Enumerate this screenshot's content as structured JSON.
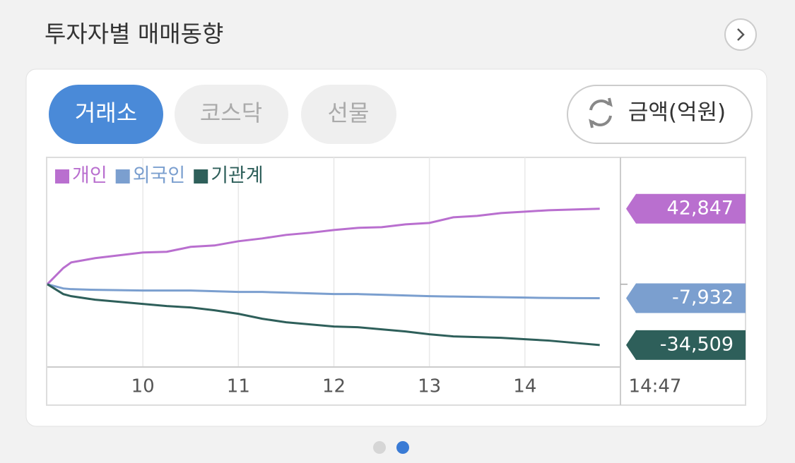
{
  "header": {
    "title": "투자자별 매매동향"
  },
  "tabs": [
    "거래소",
    "코스닥",
    "선물"
  ],
  "unit_button": "금액(억원)",
  "chart_data": {
    "type": "line",
    "x": [
      9,
      9.167,
      9.25,
      9.5,
      9.75,
      10,
      10.25,
      10.5,
      10.75,
      11,
      11.25,
      11.5,
      11.75,
      12,
      12.25,
      12.5,
      12.75,
      13,
      13.25,
      13.5,
      13.75,
      14,
      14.25,
      14.5,
      14.783
    ],
    "xlim": [
      9,
      15
    ],
    "xticks": [
      10,
      11,
      12,
      13,
      14
    ],
    "ylim": [
      -47000,
      72000
    ],
    "yticks": [
      0
    ],
    "time_label": "14:47",
    "series": [
      {
        "name": "개인",
        "color": "#b96fcf",
        "values": [
          0,
          9200,
          12400,
          14800,
          16400,
          18000,
          18400,
          21200,
          22000,
          24400,
          26000,
          28000,
          29200,
          30800,
          32000,
          32400,
          34000,
          34800,
          38000,
          38800,
          40400,
          41200,
          42000,
          42400,
          42847
        ],
        "value_labels": [
          null,
          null,
          null,
          null,
          null,
          null,
          null,
          null,
          null,
          null,
          null,
          null,
          null,
          null,
          null,
          null,
          null,
          null,
          null,
          null,
          null,
          null,
          null,
          null,
          "42,847"
        ]
      },
      {
        "name": "외국인",
        "color": "#7b9fcf",
        "values": [
          0,
          -2400,
          -2800,
          -3200,
          -3400,
          -3600,
          -3600,
          -3600,
          -4000,
          -4400,
          -4400,
          -4800,
          -5200,
          -5600,
          -5600,
          -6000,
          -6400,
          -6800,
          -7000,
          -7200,
          -7400,
          -7600,
          -7800,
          -7900,
          -7932
        ],
        "value_labels": [
          null,
          null,
          null,
          null,
          null,
          null,
          null,
          null,
          null,
          null,
          null,
          null,
          null,
          null,
          null,
          null,
          null,
          null,
          null,
          null,
          null,
          null,
          null,
          null,
          "-7,932"
        ]
      },
      {
        "name": "기관계",
        "color": "#2e5f5a",
        "values": [
          0,
          -5600,
          -6800,
          -8800,
          -10000,
          -11200,
          -12400,
          -13200,
          -14800,
          -16800,
          -19600,
          -21600,
          -22800,
          -24000,
          -24400,
          -25600,
          -26800,
          -28400,
          -29600,
          -30000,
          -30400,
          -31200,
          -32000,
          -33200,
          -34509
        ],
        "value_labels": [
          null,
          null,
          null,
          null,
          null,
          null,
          null,
          null,
          null,
          null,
          null,
          null,
          null,
          null,
          null,
          null,
          null,
          null,
          null,
          null,
          null,
          null,
          null,
          null,
          "-34,509"
        ]
      }
    ]
  }
}
